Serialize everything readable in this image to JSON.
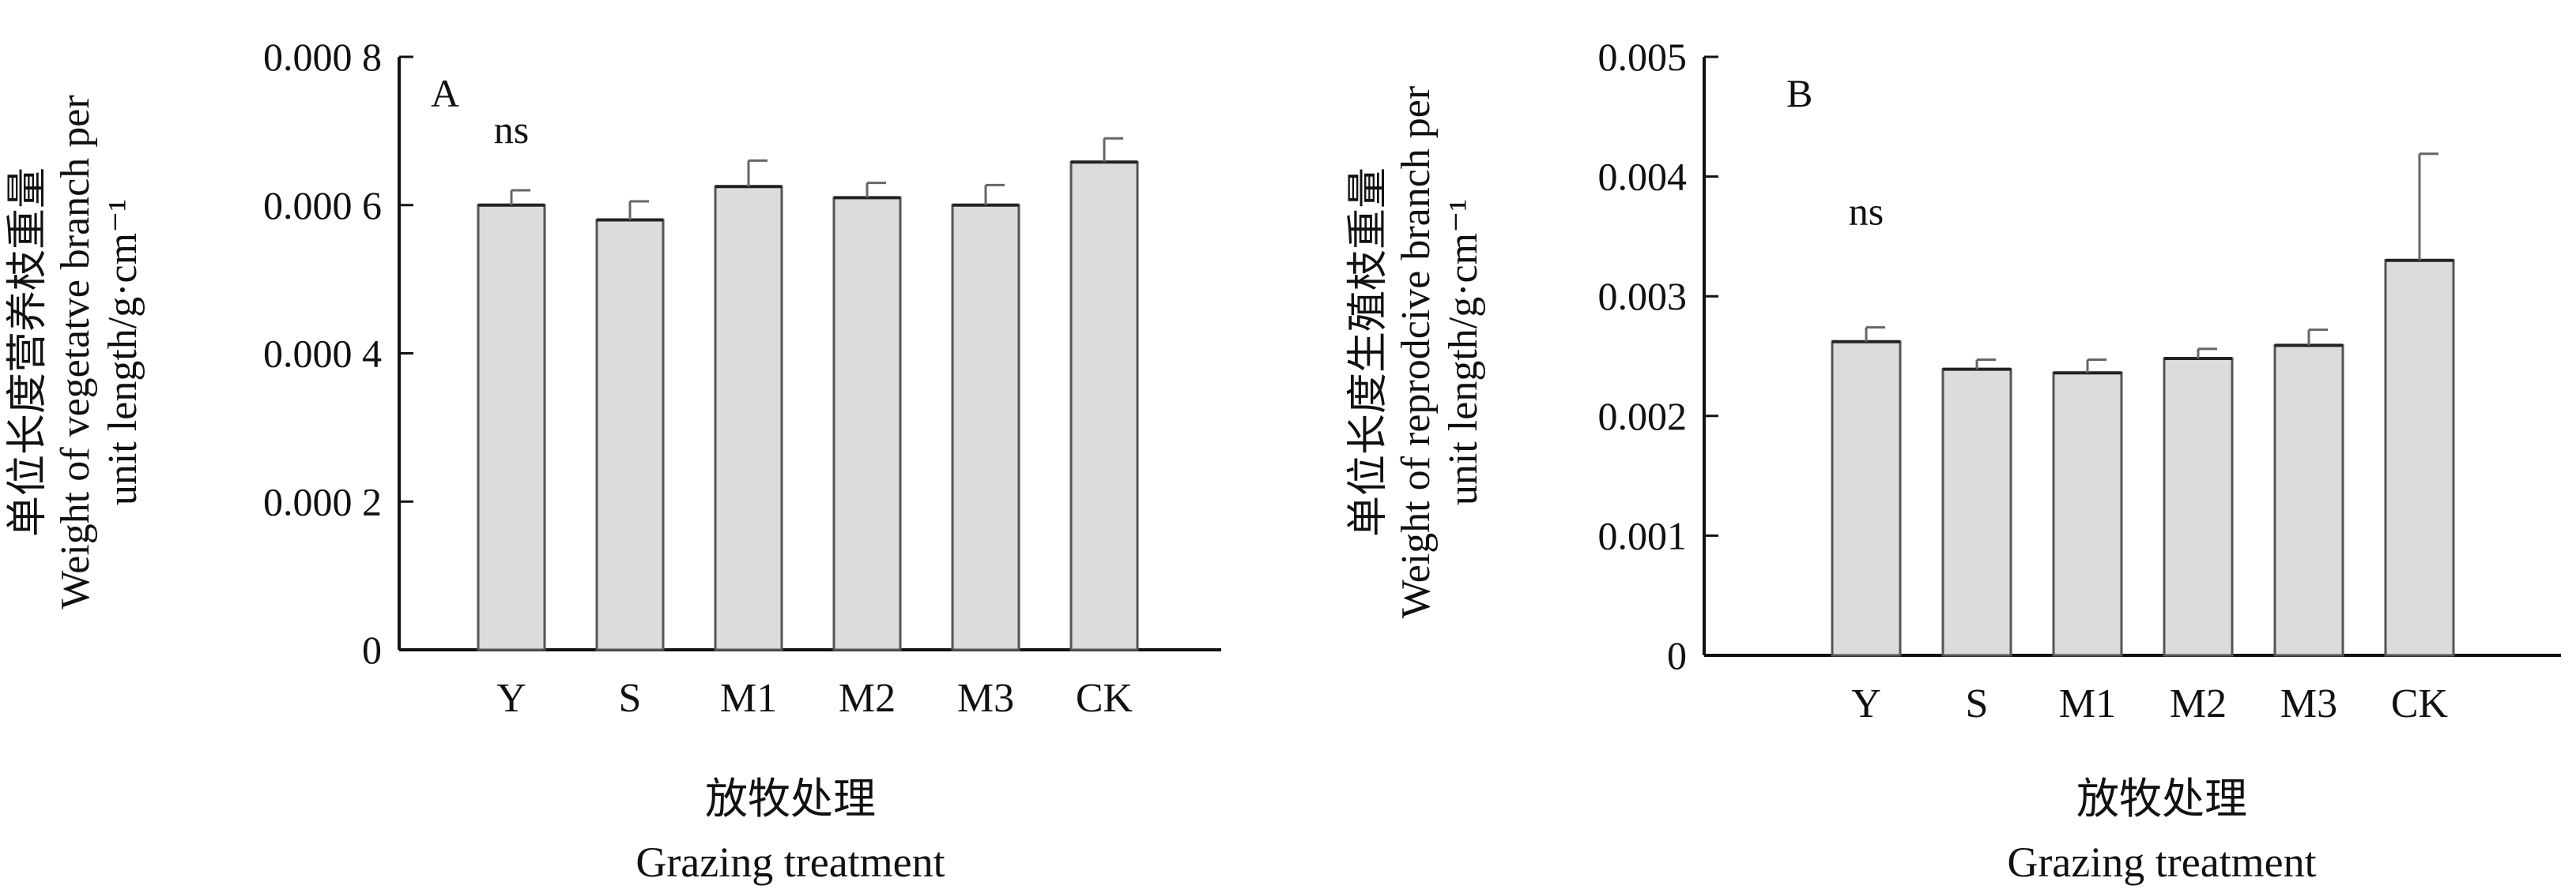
{
  "chart_data": [
    {
      "type": "bar",
      "panel_label": "A",
      "categories": [
        "Y",
        "S",
        "M1",
        "M2",
        "M3",
        "CK"
      ],
      "values": [
        0.0006,
        0.00058,
        0.000625,
        0.00061,
        0.0006,
        0.000658
      ],
      "errors": [
        2e-05,
        2.5e-05,
        3.5e-05,
        2e-05,
        2.7e-05,
        3.2e-05
      ],
      "annotation": "ns",
      "ylim": [
        0,
        0.0008
      ],
      "yticks": [
        0,
        0.0002,
        0.0004,
        0.0006,
        0.0008
      ],
      "ytick_labels": [
        "0",
        "0.000 2",
        "0.000 4",
        "0.000 6",
        "0.000 8"
      ],
      "ylabel_cn": "单位长度营养枝重量",
      "ylabel_en_1": "Weight of vegetatve branch per",
      "ylabel_en_2": "unit length/g·cm⁻¹",
      "xlabel_cn": "放牧处理",
      "xlabel_en": "Grazing treatment",
      "bar_color": "#dcdcdc",
      "grid": false
    },
    {
      "type": "bar",
      "panel_label": "B",
      "categories": [
        "Y",
        "S",
        "M1",
        "M2",
        "M3",
        "CK"
      ],
      "values": [
        0.00262,
        0.00239,
        0.00236,
        0.00248,
        0.00259,
        0.0033
      ],
      "errors": [
        0.00012,
        8e-05,
        0.00011,
        8e-05,
        0.00013,
        0.00089
      ],
      "annotation": "ns",
      "ylim": [
        0,
        0.005
      ],
      "yticks": [
        0,
        0.001,
        0.002,
        0.003,
        0.004,
        0.005
      ],
      "ytick_labels": [
        "0",
        "0.001",
        "0.002",
        "0.003",
        "0.004",
        "0.005"
      ],
      "ylabel_cn": "单位长度生殖枝重量",
      "ylabel_en_1": "Weight of reprodcive branch per",
      "ylabel_en_2": "unit length/g·cm⁻¹",
      "xlabel_cn": "放牧处理",
      "xlabel_en": "Grazing treatment",
      "bar_color": "#dcdcdc",
      "grid": false
    }
  ]
}
